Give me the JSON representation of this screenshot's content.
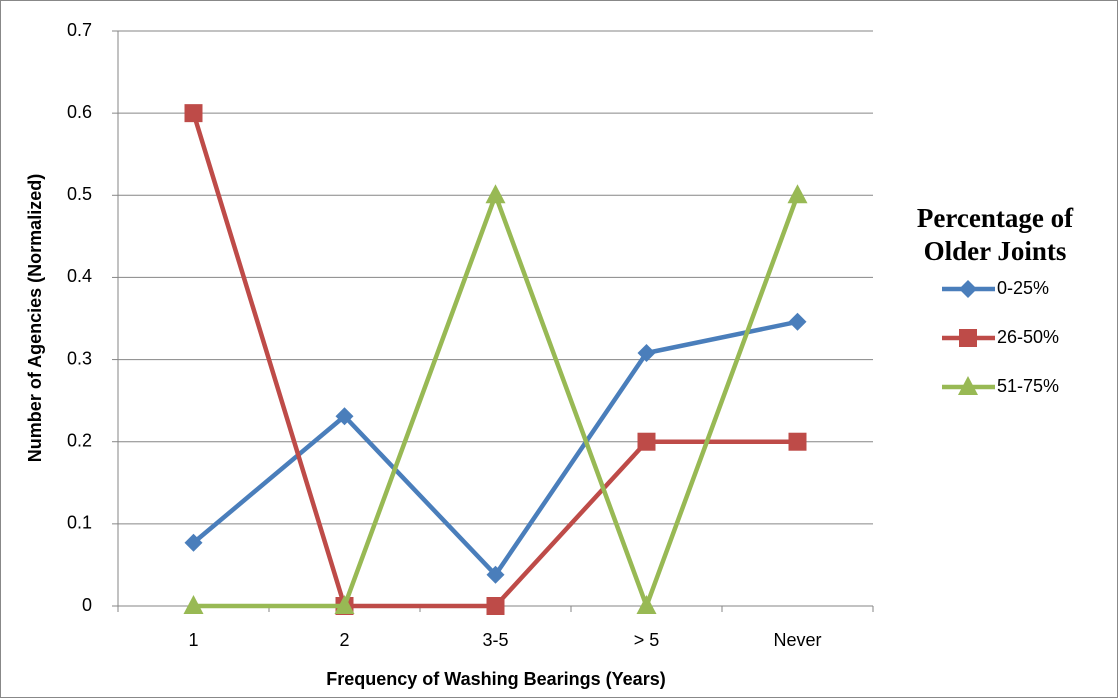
{
  "chart_data": {
    "type": "line",
    "categories": [
      "1",
      "2",
      "3-5",
      "> 5",
      "Never"
    ],
    "series": [
      {
        "name": "0-25%",
        "color": "#4a7ebb",
        "marker": "diamond",
        "values": [
          0.077,
          0.231,
          0.038,
          0.308,
          0.346
        ]
      },
      {
        "name": "26-50%",
        "color": "#be4b48",
        "marker": "square",
        "values": [
          0.6,
          0,
          0,
          0.2,
          0.2
        ]
      },
      {
        "name": "51-75%",
        "color": "#98b954",
        "marker": "triangle",
        "values": [
          0,
          0,
          0.5,
          0,
          0.5
        ]
      }
    ],
    "ylim": [
      0,
      0.7
    ],
    "yticks": [
      0,
      0.1,
      0.2,
      0.3,
      0.4,
      0.5,
      0.6,
      0.7
    ],
    "grid": true,
    "xlabel": "Frequency of Washing Bearings (Years)",
    "ylabel": "Number of Agencies (Normalized)",
    "legend_title": "Percentage of Older Joints",
    "legend_position": "right"
  }
}
